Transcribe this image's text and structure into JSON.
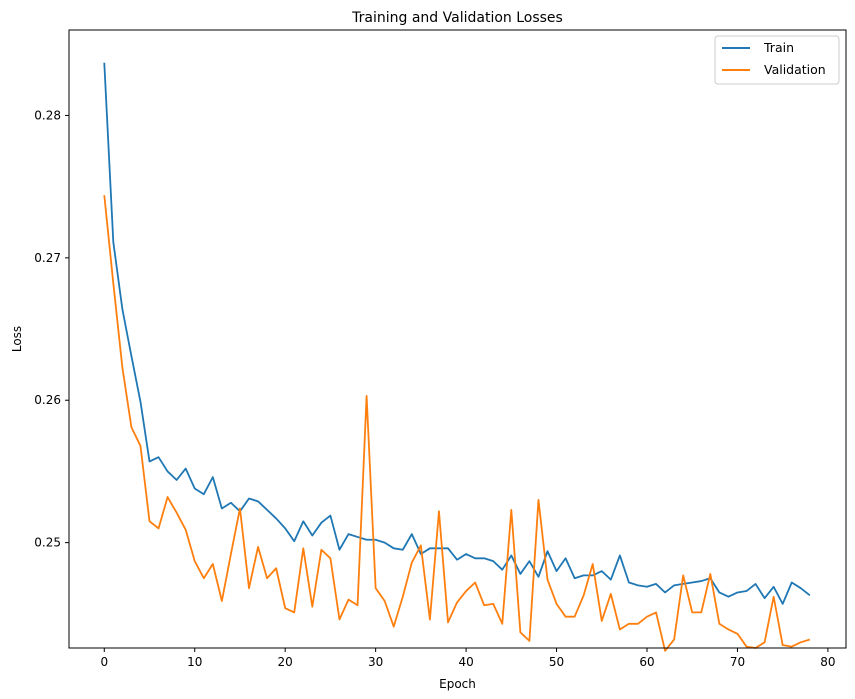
{
  "chart_data": {
    "type": "line",
    "title": "Training and Validation Losses",
    "xlabel": "Epoch",
    "ylabel": "Loss",
    "xlim": [
      -3.9,
      82.0
    ],
    "ylim": [
      0.2426,
      0.286
    ],
    "xticks": [
      0,
      10,
      20,
      30,
      40,
      50,
      60,
      70,
      80
    ],
    "yticks": [
      0.25,
      0.26,
      0.27,
      0.28
    ],
    "ytick_labels": [
      "0.25",
      "0.26",
      "0.27",
      "0.28"
    ],
    "grid": false,
    "legend_position": "top-right",
    "x": [
      0,
      1,
      2,
      3,
      4,
      5,
      6,
      7,
      8,
      9,
      10,
      11,
      12,
      13,
      14,
      15,
      16,
      17,
      18,
      19,
      20,
      21,
      22,
      23,
      24,
      25,
      26,
      27,
      28,
      29,
      30,
      31,
      32,
      33,
      34,
      35,
      36,
      37,
      38,
      39,
      40,
      41,
      42,
      43,
      44,
      45,
      46,
      47,
      48,
      49,
      50,
      51,
      52,
      53,
      54,
      55,
      56,
      57,
      58,
      59,
      60,
      61,
      62,
      63,
      64,
      65,
      66,
      67,
      68,
      69,
      70,
      71,
      72,
      73,
      74,
      75,
      76,
      77,
      78
    ],
    "series": [
      {
        "name": "Train",
        "color": "#1f77b4",
        "values": [
          0.2837,
          0.2711,
          0.2664,
          0.2631,
          0.2599,
          0.2557,
          0.256,
          0.255,
          0.2544,
          0.2552,
          0.2538,
          0.2534,
          0.2546,
          0.2524,
          0.2528,
          0.2522,
          0.2531,
          0.2529,
          0.2523,
          0.2517,
          0.251,
          0.2501,
          0.2515,
          0.2505,
          0.2514,
          0.2519,
          0.2495,
          0.2506,
          0.2504,
          0.2502,
          0.2502,
          0.25,
          0.2496,
          0.2495,
          0.2506,
          0.2492,
          0.2496,
          0.2496,
          0.2496,
          0.2488,
          0.2492,
          0.2489,
          0.2489,
          0.2487,
          0.2481,
          0.2491,
          0.2478,
          0.2487,
          0.2476,
          0.2494,
          0.248,
          0.2489,
          0.2475,
          0.2477,
          0.2477,
          0.248,
          0.2474,
          0.2491,
          0.2472,
          0.247,
          0.2469,
          0.2471,
          0.2465,
          0.247,
          0.2471,
          0.2472,
          0.2473,
          0.2475,
          0.2465,
          0.2462,
          0.2465,
          0.2466,
          0.2471,
          0.2461,
          0.2469,
          0.2457,
          0.2472,
          0.2468,
          0.2463
        ]
      },
      {
        "name": "Validation",
        "color": "#ff7f0e",
        "values": [
          0.2744,
          0.2682,
          0.2623,
          0.2581,
          0.2568,
          0.2515,
          0.251,
          0.2532,
          0.2521,
          0.2509,
          0.2487,
          0.2475,
          0.2485,
          0.2459,
          0.2492,
          0.2524,
          0.2468,
          0.2497,
          0.2475,
          0.2482,
          0.2454,
          0.2451,
          0.2496,
          0.2455,
          0.2495,
          0.2489,
          0.2446,
          0.246,
          0.2456,
          0.2603,
          0.2468,
          0.2459,
          0.2441,
          0.2462,
          0.2486,
          0.2498,
          0.2446,
          0.2522,
          0.2444,
          0.2458,
          0.2466,
          0.2472,
          0.2456,
          0.2457,
          0.2443,
          0.2523,
          0.2437,
          0.2431,
          0.253,
          0.2474,
          0.2457,
          0.2448,
          0.2448,
          0.2463,
          0.2485,
          0.2445,
          0.2464,
          0.2439,
          0.2443,
          0.2443,
          0.2448,
          0.2451,
          0.2424,
          0.2432,
          0.2477,
          0.2451,
          0.2451,
          0.2478,
          0.2443,
          0.2439,
          0.2436,
          0.2427,
          0.2426,
          0.243,
          0.2462,
          0.2428,
          0.2427,
          0.243,
          0.2432
        ]
      }
    ]
  }
}
